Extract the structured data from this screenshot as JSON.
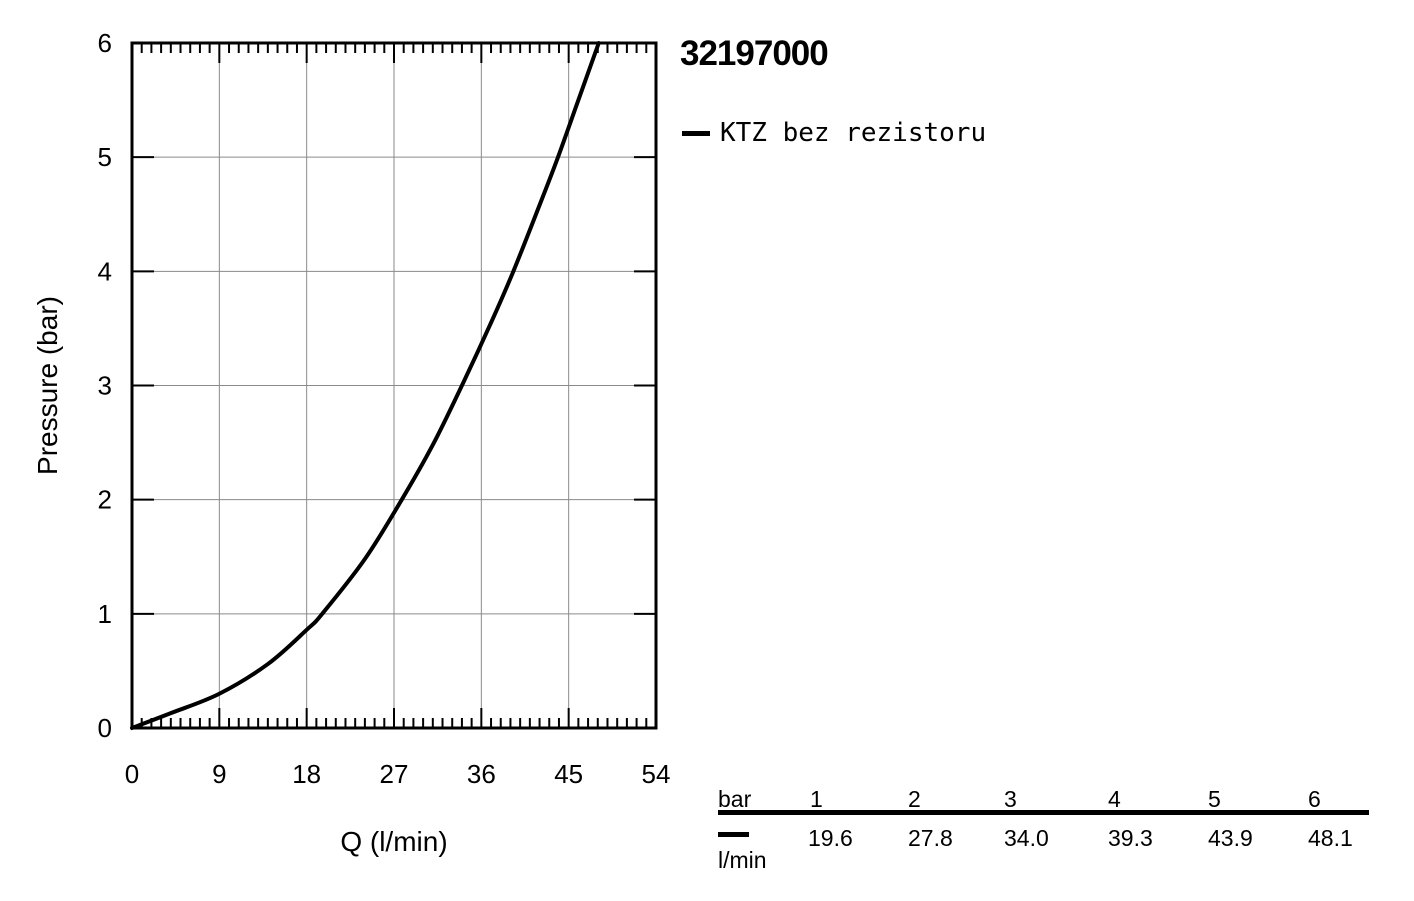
{
  "chart_data": {
    "type": "line",
    "xlabel": "Q (l/min)",
    "ylabel": "Pressure (bar)",
    "xlim": [
      0,
      54
    ],
    "ylim": [
      0,
      6
    ],
    "x_ticks": [
      0,
      9,
      18,
      27,
      36,
      45,
      54
    ],
    "y_ticks": [
      0,
      1,
      2,
      3,
      4,
      5,
      6
    ],
    "grid": true,
    "series": [
      {
        "name": "KTZ bez rezistoru",
        "color": "#000000",
        "x": [
          0,
          4,
          9,
          14,
          18,
          19.6,
          24,
          27.8,
          31,
          34.0,
          37,
          39.3,
          42,
          43.9,
          46,
          48.1
        ],
        "y": [
          0,
          0.13,
          0.3,
          0.56,
          0.86,
          1.0,
          1.48,
          2.0,
          2.48,
          3.0,
          3.55,
          4.0,
          4.58,
          5.0,
          5.5,
          6.0
        ]
      }
    ]
  },
  "product": {
    "code": "32197000"
  },
  "legend": {
    "label": "KTZ bez rezistoru"
  },
  "table": {
    "pressure_label": "bar",
    "flow_unit": "l/min",
    "pressures": [
      "1",
      "2",
      "3",
      "4",
      "5",
      "6"
    ],
    "flows": [
      "19.6",
      "27.8",
      "34.0",
      "39.3",
      "43.9",
      "48.1"
    ]
  }
}
